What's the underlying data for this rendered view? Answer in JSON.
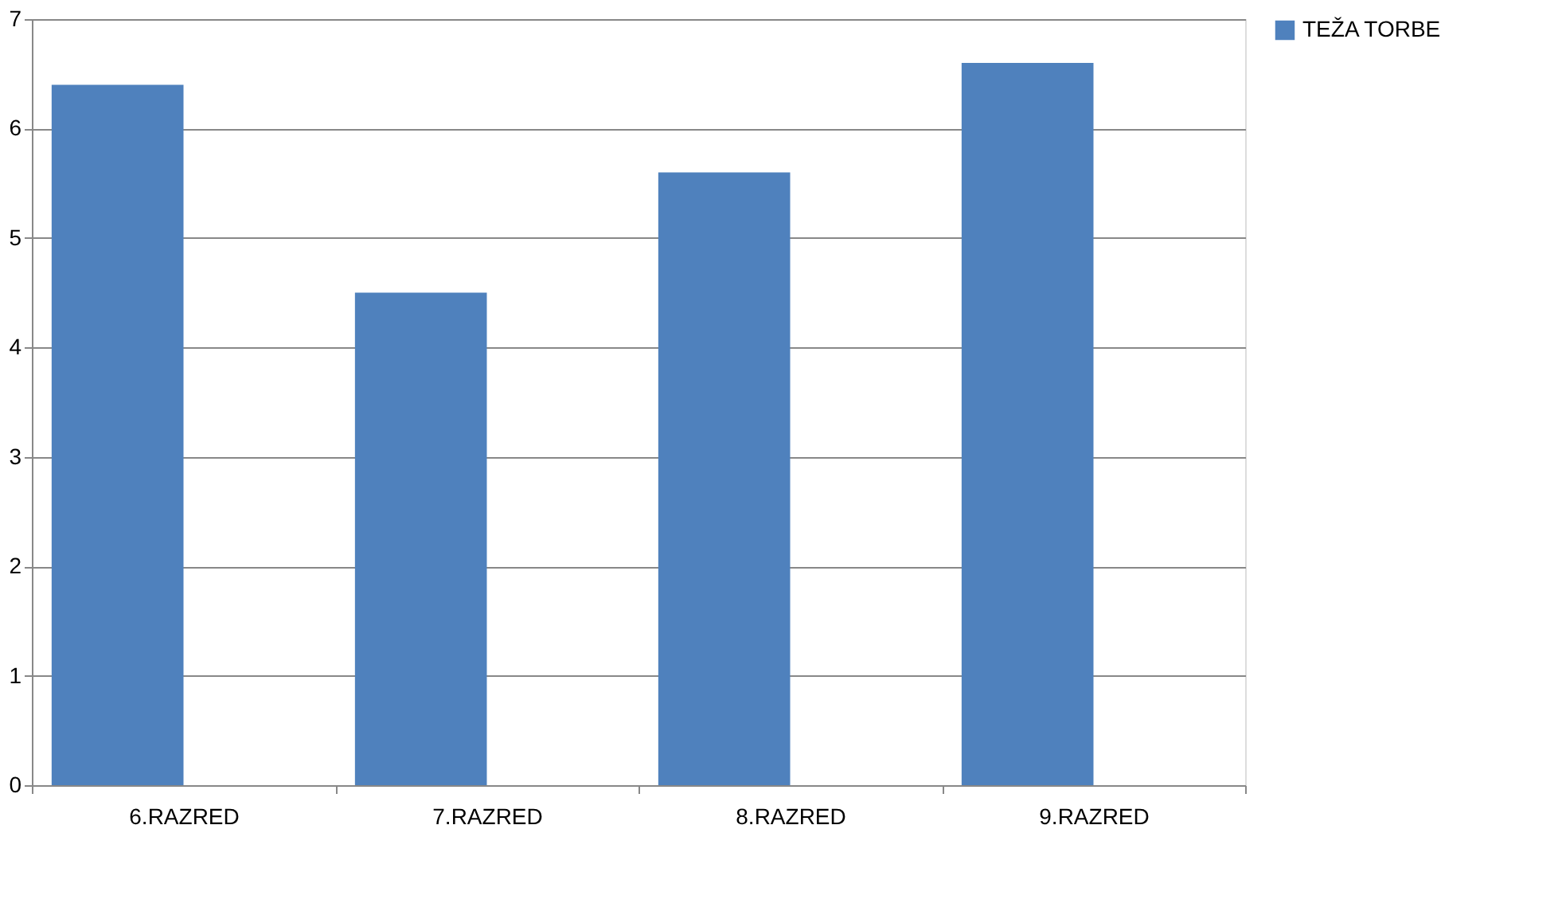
{
  "chart_data": {
    "type": "bar",
    "categories": [
      "6.RAZRED",
      "7.RAZRED",
      "8.RAZRED",
      "9.RAZRED"
    ],
    "series": [
      {
        "name": "TEŽA TORBE",
        "color": "#4f81bd",
        "values": [
          6.4,
          4.5,
          5.6,
          6.6
        ]
      }
    ],
    "ylim": [
      0,
      7
    ],
    "yticks": [
      0,
      1,
      2,
      3,
      4,
      5,
      6,
      7
    ],
    "grid": "y",
    "legend": "right"
  }
}
